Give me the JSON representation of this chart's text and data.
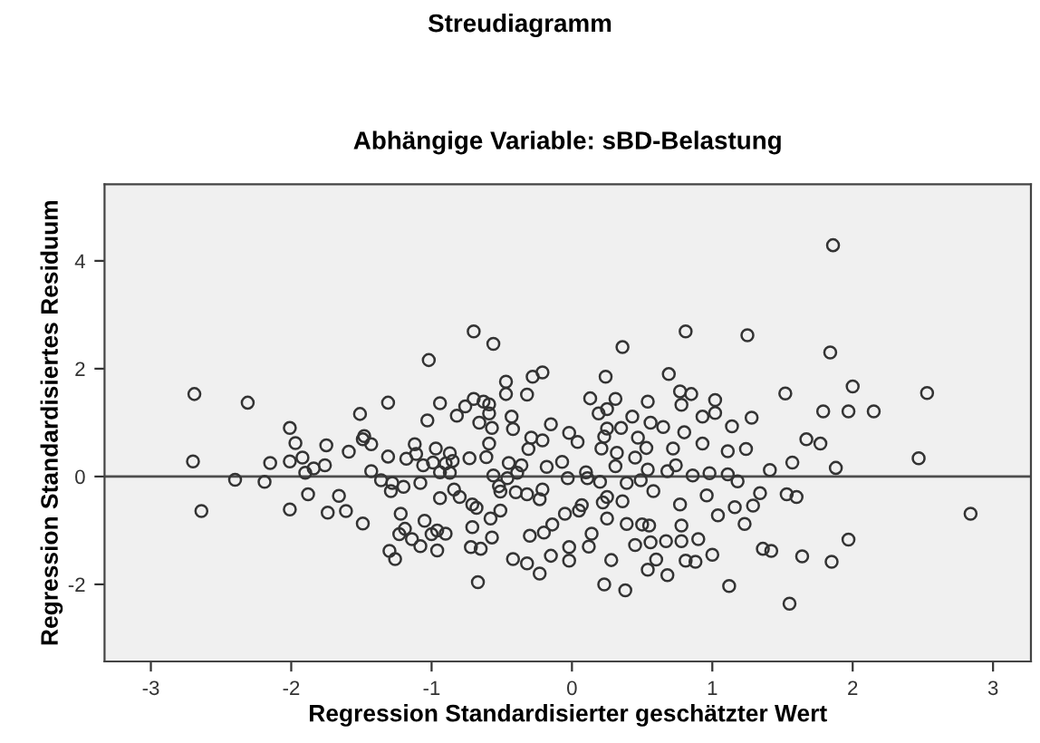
{
  "chart_data": {
    "type": "scatter",
    "title": "Streudiagramm",
    "subtitle": "Abhängige Variable: sBD-Belastung",
    "xlabel": "Regression Standardisierter geschätzter Wert",
    "ylabel": "Regression Standardisiertes Residuum",
    "xlim": [
      -3.33,
      3.27
    ],
    "ylim": [
      -3.43,
      5.42
    ],
    "xticks": [
      -3,
      -2,
      -1,
      0,
      1,
      2,
      3
    ],
    "yticks": [
      -2,
      0,
      2,
      4
    ],
    "marker": "circle",
    "grid": false,
    "legend": false,
    "ref_lines": [
      {
        "axis": "y",
        "value": 0,
        "color": "#4d4d4d"
      }
    ],
    "series": [
      {
        "color": "#333333",
        "x": [
          -2.69,
          -2.31,
          -2.7,
          -2.64,
          -2.4,
          -2.19,
          -2.15,
          -2.01,
          -1.97,
          -2.01,
          -1.92,
          -1.9,
          -1.84,
          -1.76,
          -1.75,
          -2.01,
          -1.88,
          -1.74,
          -1.66,
          -1.61,
          -1.59,
          -1.51,
          -1.49,
          -1.48,
          -1.43,
          -1.49,
          -1.43,
          -1.31,
          -1.36,
          -1.31,
          -1.28,
          -1.29,
          -1.2,
          -1.3,
          -1.26,
          -1.22,
          -1.19,
          -1.23,
          -1.14,
          -1.08,
          -1.12,
          -1.11,
          -1.18,
          -1.08,
          -1.06,
          -1.03,
          -1.02,
          -1.05,
          -1.0,
          -0.96,
          -0.96,
          -0.9,
          -0.94,
          -0.94,
          -0.97,
          -0.99,
          -0.9,
          -0.94,
          -0.87,
          -0.85,
          -0.87,
          -0.82,
          -0.84,
          -0.8,
          -0.76,
          -0.7,
          -0.7,
          -0.56,
          -0.73,
          -0.71,
          -0.68,
          -0.71,
          -0.72,
          -0.65,
          -0.67,
          -0.63,
          -0.59,
          -0.66,
          -0.59,
          -0.57,
          -0.59,
          -0.61,
          -0.56,
          -0.58,
          -0.57,
          -0.51,
          -0.52,
          -0.51,
          -0.47,
          -0.47,
          -0.43,
          -0.42,
          -0.45,
          -0.46,
          -0.4,
          -0.42,
          -0.32,
          -0.23,
          -0.3,
          -0.2,
          -0.15,
          -0.32,
          -0.28,
          -0.21,
          -0.29,
          -0.21,
          -0.31,
          -0.36,
          -0.39,
          -0.32,
          -0.23,
          -0.21,
          -0.18,
          -0.15,
          -0.14,
          -0.02,
          0.04,
          -0.07,
          -0.03,
          -0.05,
          -0.02,
          -0.02,
          0.05,
          0.07,
          0.1,
          0.11,
          0.13,
          0.12,
          0.14,
          0.2,
          0.19,
          0.25,
          0.24,
          0.31,
          0.23,
          0.25,
          0.21,
          0.22,
          0.25,
          0.25,
          0.28,
          0.23,
          0.38,
          0.36,
          0.35,
          0.32,
          0.31,
          0.36,
          0.39,
          0.43,
          0.47,
          0.45,
          0.49,
          0.39,
          0.45,
          0.5,
          0.54,
          0.56,
          0.53,
          0.54,
          0.58,
          0.55,
          0.56,
          0.54,
          0.6,
          0.65,
          0.68,
          0.67,
          0.68,
          0.69,
          0.72,
          0.74,
          0.77,
          0.77,
          0.78,
          0.81,
          0.8,
          0.78,
          0.78,
          0.81,
          0.85,
          0.86,
          0.88,
          0.9,
          0.93,
          0.93,
          0.96,
          0.98,
          1.0,
          1.02,
          1.02,
          1.04,
          1.11,
          1.11,
          1.12,
          1.14,
          1.16,
          1.18,
          1.23,
          1.25,
          1.24,
          1.28,
          1.29,
          1.34,
          1.36,
          1.42,
          1.41,
          1.52,
          1.53,
          1.6,
          1.57,
          1.55,
          1.64,
          1.67,
          1.77,
          1.79,
          1.84,
          1.86,
          1.88,
          1.85,
          1.97,
          2.0,
          1.97,
          2.15,
          2.47,
          2.53,
          2.84
        ],
        "values": [
          1.53,
          1.37,
          0.28,
          -0.64,
          -0.06,
          -0.1,
          0.25,
          0.9,
          0.62,
          0.28,
          0.35,
          0.07,
          0.15,
          0.21,
          0.58,
          -0.61,
          -0.33,
          -0.67,
          -0.36,
          -0.64,
          0.46,
          1.16,
          0.69,
          0.75,
          0.6,
          -0.87,
          0.1,
          1.37,
          -0.07,
          0.37,
          -0.12,
          -0.27,
          -0.19,
          -1.38,
          -1.53,
          -0.69,
          -0.97,
          -1.07,
          -1.16,
          -1.29,
          0.6,
          0.42,
          0.33,
          -0.12,
          0.21,
          1.04,
          2.16,
          -0.82,
          -1.07,
          -1.37,
          -1.0,
          -1.06,
          1.36,
          -0.4,
          0.52,
          0.26,
          0.24,
          0.08,
          0.43,
          0.29,
          0.07,
          1.13,
          -0.24,
          -0.38,
          1.3,
          1.44,
          2.69,
          2.46,
          0.34,
          -0.52,
          -0.58,
          -0.94,
          -1.31,
          -1.34,
          -1.96,
          1.39,
          1.34,
          1.0,
          1.17,
          0.9,
          0.61,
          0.36,
          0.02,
          -0.78,
          -1.13,
          -0.63,
          -0.18,
          -0.28,
          1.76,
          1.53,
          1.11,
          0.88,
          0.25,
          -0.03,
          -0.29,
          -1.53,
          -1.61,
          -1.8,
          -1.1,
          -1.04,
          -1.47,
          1.52,
          1.85,
          1.93,
          0.72,
          0.67,
          0.51,
          0.21,
          0.07,
          -0.33,
          -0.42,
          -0.24,
          0.18,
          0.97,
          -0.89,
          0.81,
          0.64,
          0.27,
          -0.03,
          -0.69,
          -1.31,
          -1.56,
          -0.63,
          -0.53,
          0.08,
          -0.03,
          1.45,
          -1.3,
          -1.06,
          -0.1,
          1.17,
          1.25,
          1.85,
          1.44,
          0.74,
          0.89,
          0.52,
          -0.48,
          -0.38,
          -0.78,
          -1.55,
          -2.0,
          -2.11,
          2.4,
          0.9,
          0.44,
          0.19,
          -0.46,
          -0.12,
          1.11,
          0.72,
          0.35,
          -0.07,
          -0.88,
          -1.27,
          -0.89,
          1.39,
          1.0,
          0.53,
          0.13,
          -0.27,
          -0.91,
          -1.22,
          -1.73,
          -1.54,
          0.92,
          0.1,
          -1.2,
          -1.83,
          1.9,
          0.52,
          0.21,
          -0.52,
          1.58,
          1.33,
          2.69,
          0.82,
          -0.91,
          -1.2,
          -1.56,
          1.53,
          0.02,
          -1.58,
          -1.16,
          1.11,
          0.61,
          -0.35,
          0.06,
          -1.45,
          1.42,
          1.18,
          -0.72,
          0.47,
          0.04,
          -2.03,
          0.93,
          -0.57,
          -0.09,
          -0.88,
          2.62,
          0.51,
          1.09,
          -0.54,
          -0.31,
          -1.34,
          -1.38,
          0.12,
          1.54,
          -0.33,
          -0.38,
          0.26,
          -2.36,
          -1.48,
          0.69,
          0.61,
          1.21,
          2.3,
          4.29,
          0.16,
          -1.58,
          1.21,
          1.67,
          -1.17,
          1.21,
          0.34,
          1.55,
          -0.69
        ]
      }
    ]
  }
}
